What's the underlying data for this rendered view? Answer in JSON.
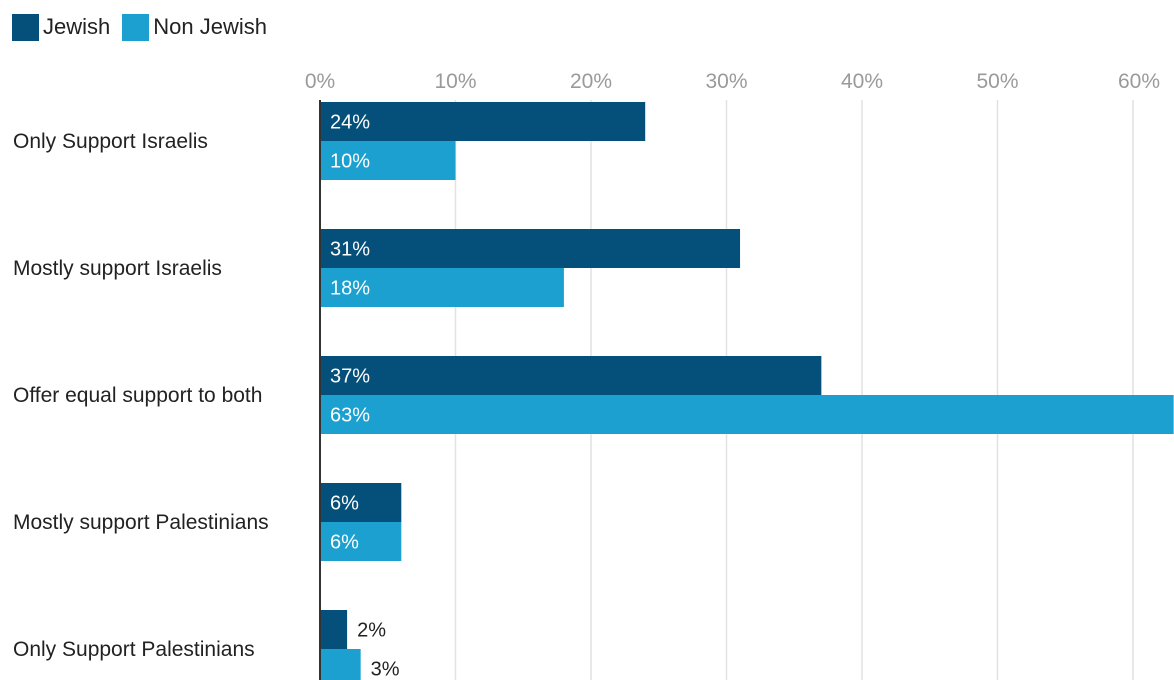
{
  "colors": {
    "jewish": "#04507a",
    "non_jewish": "#1ba0d0"
  },
  "chart_data": {
    "type": "bar",
    "orientation": "horizontal",
    "categories": [
      "Only Support Israelis",
      "Mostly support Israelis",
      "Offer equal support to both",
      "Mostly support Palestinians",
      "Only Support Palestinians"
    ],
    "series": [
      {
        "name": "Jewish",
        "values": [
          24,
          31,
          37,
          6,
          2
        ],
        "labels": [
          "24%",
          "31%",
          "37%",
          "6%",
          "2%"
        ]
      },
      {
        "name": "Non Jewish",
        "values": [
          10,
          18,
          63,
          6,
          3
        ],
        "labels": [
          "10%",
          "18%",
          "63%",
          "6%",
          "3%"
        ]
      }
    ],
    "x_ticks": [
      "0%",
      "10%",
      "20%",
      "30%",
      "40%",
      "50%",
      "60%"
    ],
    "xlim": [
      0,
      63
    ],
    "grid": true,
    "legend_position": "top-left",
    "title": "",
    "xlabel": "",
    "ylabel": ""
  }
}
